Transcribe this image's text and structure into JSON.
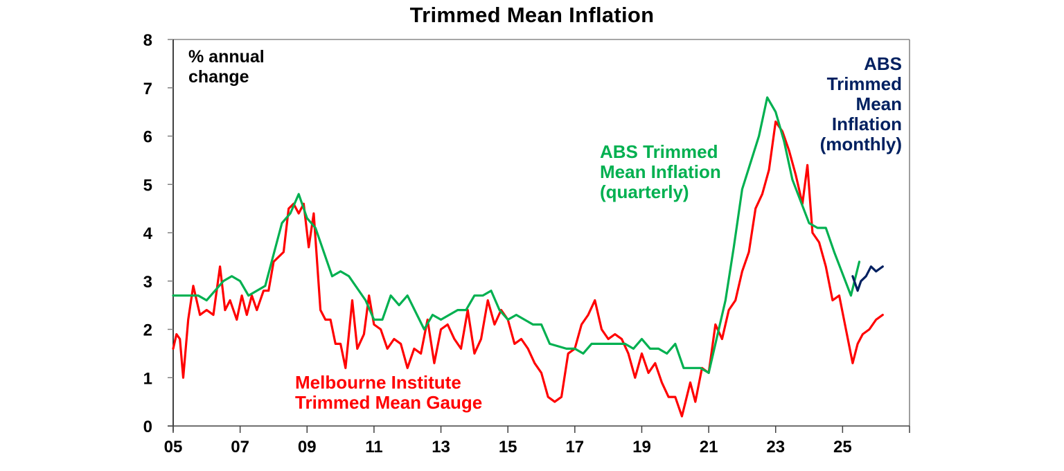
{
  "title": "Trimmed Mean Inflation",
  "annotations": {
    "units_line1": "% annual",
    "units_line2": "change",
    "quarterly_line1": "ABS Trimmed",
    "quarterly_line2": "Mean Inflation",
    "quarterly_line3": "(quarterly)",
    "melbourne_line1": "Melbourne Institute",
    "melbourne_line2": "Trimmed Mean Gauge",
    "monthly_line1": "ABS",
    "monthly_line2": "Trimmed",
    "monthly_line3": "Mean",
    "monthly_line4": "Inflation",
    "monthly_line5": "(monthly)"
  },
  "colors": {
    "melbourne": "#ff0000",
    "quarterly": "#00b050",
    "monthly": "#002060",
    "axis": "#000000",
    "frame": "#a6a6a6"
  },
  "chart_data": {
    "type": "line",
    "title": "Trimmed Mean Inflation",
    "xlabel": "",
    "ylabel": "% annual change",
    "xlim": [
      2005,
      2027
    ],
    "ylim": [
      0,
      8
    ],
    "grid": false,
    "x_tick_labels": [
      "05",
      "07",
      "09",
      "11",
      "13",
      "15",
      "17",
      "19",
      "21",
      "23",
      "25"
    ],
    "y_tick_labels": [
      "0",
      "1",
      "2",
      "3",
      "4",
      "5",
      "6",
      "7",
      "8"
    ],
    "legend_position": "inline annotations",
    "series": [
      {
        "name": "ABS Trimmed Mean Inflation (quarterly)",
        "color": "#00b050",
        "x": [
          2005.0,
          2005.75,
          2006.0,
          2006.5,
          2006.75,
          2007.0,
          2007.25,
          2007.75,
          2008.25,
          2008.5,
          2008.75,
          2009.0,
          2009.25,
          2009.75,
          2010.0,
          2010.25,
          2010.75,
          2011.0,
          2011.25,
          2011.5,
          2011.75,
          2012.0,
          2012.5,
          2012.75,
          2013.0,
          2013.5,
          2013.75,
          2014.0,
          2014.25,
          2014.5,
          2014.75,
          2015.0,
          2015.25,
          2015.75,
          2016.0,
          2016.25,
          2016.75,
          2017.0,
          2017.25,
          2017.5,
          2018.0,
          2018.25,
          2018.5,
          2018.75,
          2019.0,
          2019.25,
          2019.5,
          2019.75,
          2020.0,
          2020.25,
          2020.5,
          2020.75,
          2021.0,
          2021.5,
          2021.75,
          2022.0,
          2022.5,
          2022.75,
          2023.0,
          2023.25,
          2023.5,
          2024.0,
          2024.25,
          2024.5,
          2024.75,
          2025.25,
          2025.5
        ],
        "values": [
          2.7,
          2.7,
          2.6,
          3.0,
          3.1,
          3.0,
          2.7,
          2.9,
          4.2,
          4.4,
          4.8,
          4.3,
          4.1,
          3.1,
          3.2,
          3.1,
          2.6,
          2.2,
          2.2,
          2.7,
          2.5,
          2.7,
          2.0,
          2.3,
          2.2,
          2.4,
          2.4,
          2.7,
          2.7,
          2.8,
          2.4,
          2.2,
          2.3,
          2.1,
          2.1,
          1.7,
          1.6,
          1.6,
          1.5,
          1.7,
          1.7,
          1.7,
          1.7,
          1.6,
          1.8,
          1.6,
          1.6,
          1.5,
          1.7,
          1.2,
          1.2,
          1.2,
          1.1,
          2.6,
          3.7,
          4.9,
          6.0,
          6.8,
          6.5,
          5.9,
          5.1,
          4.2,
          4.1,
          4.1,
          3.6,
          2.7,
          3.4
        ]
      },
      {
        "name": "Melbourne Institute Trimmed Mean Gauge",
        "color": "#ff0000",
        "x": [
          2005.0,
          2005.1,
          2005.2,
          2005.3,
          2005.45,
          2005.6,
          2005.8,
          2006.0,
          2006.2,
          2006.4,
          2006.55,
          2006.7,
          2006.9,
          2007.05,
          2007.2,
          2007.35,
          2007.5,
          2007.7,
          2007.85,
          2008.0,
          2008.15,
          2008.3,
          2008.45,
          2008.6,
          2008.75,
          2008.9,
          2009.05,
          2009.2,
          2009.4,
          2009.55,
          2009.7,
          2009.85,
          2010.0,
          2010.15,
          2010.35,
          2010.5,
          2010.7,
          2010.85,
          2011.0,
          2011.2,
          2011.4,
          2011.6,
          2011.8,
          2012.0,
          2012.2,
          2012.4,
          2012.6,
          2012.8,
          2013.0,
          2013.2,
          2013.4,
          2013.6,
          2013.8,
          2014.0,
          2014.2,
          2014.4,
          2014.6,
          2014.8,
          2015.0,
          2015.2,
          2015.4,
          2015.6,
          2015.8,
          2016.0,
          2016.2,
          2016.4,
          2016.6,
          2016.8,
          2017.0,
          2017.2,
          2017.4,
          2017.6,
          2017.8,
          2018.0,
          2018.2,
          2018.4,
          2018.6,
          2018.8,
          2019.0,
          2019.2,
          2019.4,
          2019.6,
          2019.8,
          2020.0,
          2020.2,
          2020.45,
          2020.6,
          2020.8,
          2021.0,
          2021.2,
          2021.4,
          2021.6,
          2021.8,
          2022.0,
          2022.2,
          2022.4,
          2022.6,
          2022.8,
          2023.0,
          2023.2,
          2023.4,
          2023.6,
          2023.8,
          2023.95,
          2024.1,
          2024.3,
          2024.5,
          2024.7,
          2024.9,
          2025.1,
          2025.3,
          2025.45,
          2025.6,
          2025.8,
          2026.0,
          2026.2
        ],
        "values": [
          1.6,
          1.9,
          1.8,
          1.0,
          2.2,
          2.9,
          2.3,
          2.4,
          2.3,
          3.3,
          2.4,
          2.6,
          2.2,
          2.7,
          2.3,
          2.7,
          2.4,
          2.8,
          2.8,
          3.4,
          3.5,
          3.6,
          4.5,
          4.6,
          4.4,
          4.6,
          3.7,
          4.4,
          2.4,
          2.2,
          2.2,
          1.7,
          1.7,
          1.2,
          2.6,
          1.6,
          1.9,
          2.7,
          2.1,
          2.0,
          1.6,
          1.8,
          1.7,
          1.2,
          1.6,
          1.5,
          2.2,
          1.3,
          2.0,
          2.1,
          1.8,
          1.6,
          2.4,
          1.5,
          1.8,
          2.6,
          2.1,
          2.4,
          2.2,
          1.7,
          1.8,
          1.6,
          1.3,
          1.1,
          0.6,
          0.5,
          0.6,
          1.5,
          1.6,
          2.1,
          2.3,
          2.6,
          2.0,
          1.8,
          1.9,
          1.8,
          1.5,
          1.0,
          1.5,
          1.1,
          1.3,
          0.9,
          0.6,
          0.6,
          0.2,
          0.9,
          0.5,
          1.2,
          1.1,
          2.1,
          1.8,
          2.4,
          2.6,
          3.2,
          3.6,
          4.5,
          4.8,
          5.3,
          6.3,
          6.1,
          5.7,
          5.2,
          4.6,
          5.4,
          4.0,
          3.8,
          3.3,
          2.6,
          2.7,
          2.0,
          1.3,
          1.7,
          1.9,
          2.0,
          2.2,
          2.3
        ]
      },
      {
        "name": "ABS Trimmed Mean Inflation (monthly)",
        "color": "#002060",
        "x": [
          2025.3,
          2025.45,
          2025.55,
          2025.7,
          2025.85,
          2026.0,
          2026.2
        ],
        "values": [
          3.1,
          2.8,
          3.0,
          3.1,
          3.3,
          3.2,
          3.3
        ]
      }
    ]
  }
}
